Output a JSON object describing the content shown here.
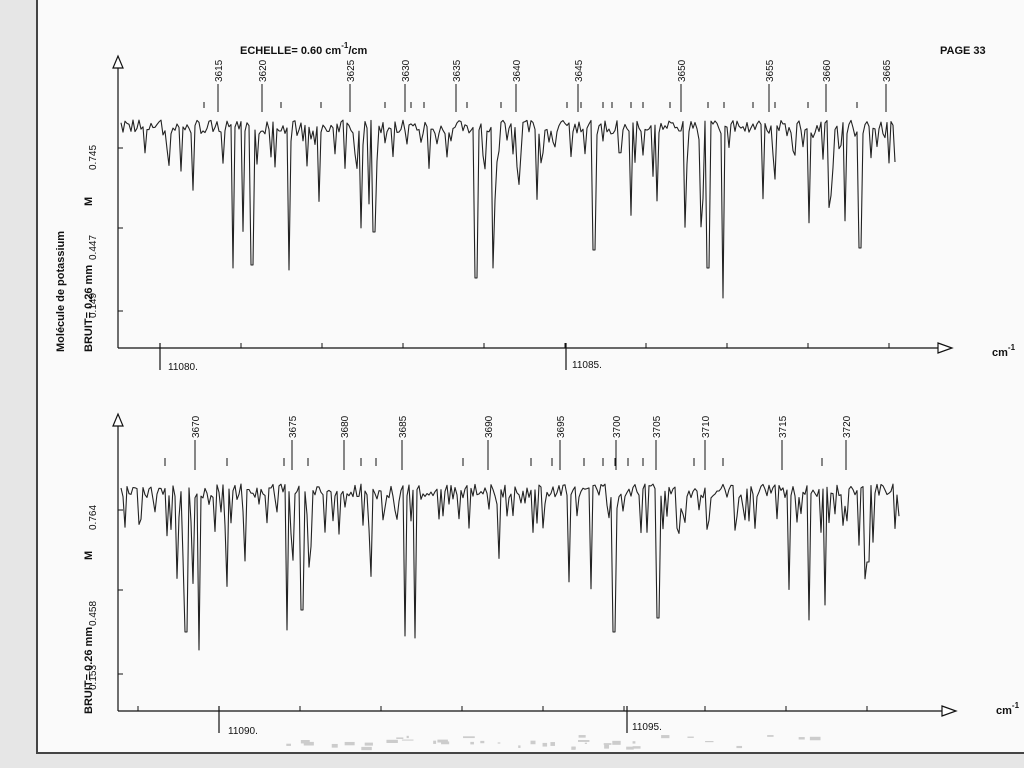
{
  "page": {
    "scale_label": "ECHELLE= 0.60 cm",
    "scale_sup": "-1",
    "scale_tail": "/cm",
    "page_label": "PAGE 33",
    "molecule_label": "Molécule de potassium",
    "unit_label": "cm",
    "unit_sup": "-1"
  },
  "chart_data": [
    {
      "type": "line",
      "noise_label": "BRUIT=  0.26 mm",
      "m_label": "M",
      "y_ticks": [
        "0.149",
        "0.447",
        "0.745"
      ],
      "x_tick_labels": [
        "11080.",
        "11085."
      ],
      "line_numbers": [
        "3615",
        "3620",
        "3625",
        "3630",
        "3635",
        "3640",
        "3645",
        "3650",
        "3655",
        "3660",
        "3665"
      ],
      "major_ticks": [
        11080,
        11085
      ],
      "x_range": [
        11078.8,
        11090.3
      ]
    },
    {
      "type": "line",
      "noise_label": "BRUIT=  0.26 mm",
      "m_label": "M",
      "y_ticks": [
        "0.153",
        "0.458",
        "0.764"
      ],
      "x_tick_labels": [
        "11090.",
        "11095."
      ],
      "line_numbers": [
        "3670",
        "3675",
        "3680",
        "3685",
        "3690",
        "3695",
        "3700",
        "3705",
        "3710",
        "3715",
        "3720"
      ],
      "major_ticks": [
        11090,
        11095
      ],
      "x_range": [
        11088.8,
        11100.5
      ]
    }
  ]
}
